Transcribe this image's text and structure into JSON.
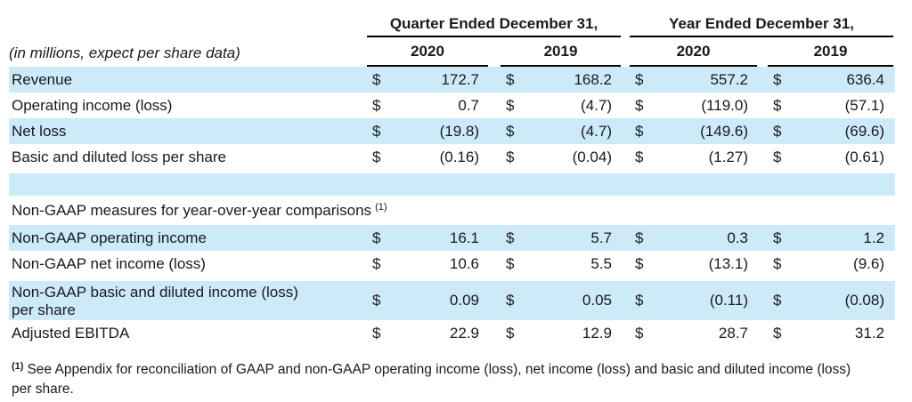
{
  "meta": {
    "units_note": "(in millions, expect per share data)"
  },
  "table": {
    "currency_symbol": "$",
    "col_groups": [
      {
        "label": "Quarter Ended December 31,"
      },
      {
        "label": "Year Ended December 31,"
      }
    ],
    "years": [
      "2020",
      "2019",
      "2020",
      "2019"
    ],
    "rows": [
      {
        "label": "Revenue",
        "values": [
          "172.7",
          "168.2",
          "557.2",
          "636.4"
        ],
        "shaded": true
      },
      {
        "label": "Operating income (loss)",
        "values": [
          "0.7",
          "(4.7)",
          "(119.0)",
          "(57.1)"
        ],
        "shaded": false
      },
      {
        "label": "Net loss",
        "values": [
          "(19.8)",
          "(4.7)",
          "(149.6)",
          "(69.6)"
        ],
        "shaded": true
      },
      {
        "label": "Basic and diluted loss per share",
        "values": [
          "(0.16)",
          "(0.04)",
          "(1.27)",
          "(0.61)"
        ],
        "shaded": false
      },
      {
        "type": "spacer",
        "shaded": true
      },
      {
        "type": "section",
        "label": "Non-GAAP measures for year-over-year comparisons",
        "superscript": "(1)",
        "shaded": false
      },
      {
        "label": "Non-GAAP operating income",
        "values": [
          "16.1",
          "5.7",
          "0.3",
          "1.2"
        ],
        "shaded": true
      },
      {
        "label": "Non-GAAP net income (loss)",
        "values": [
          "10.6",
          "5.5",
          "(13.1)",
          "(9.6)"
        ],
        "shaded": false
      },
      {
        "label": "Non-GAAP basic and diluted income (loss) per share",
        "values": [
          "0.09",
          "0.05",
          "(0.11)",
          "(0.08)"
        ],
        "shaded": true,
        "two_line": true
      },
      {
        "label": "Adjusted EBITDA",
        "values": [
          "22.9",
          "12.9",
          "28.7",
          "31.2"
        ],
        "shaded": false
      }
    ]
  },
  "footnote": {
    "marker": "(1)",
    "text": "See Appendix for reconciliation of GAAP and non-GAAP operating income (loss), net income (loss) and basic and diluted income (loss) per share."
  },
  "colors": {
    "row_shade": "#cdeaf9",
    "text": "#191920",
    "rule": "#000000"
  }
}
